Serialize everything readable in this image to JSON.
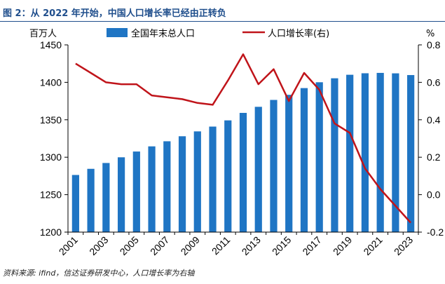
{
  "header": {
    "title": "图 2：从 2022 年开始，中国人口增长率已经由正转负"
  },
  "footer": {
    "source": "资料来源: ifind，信达证券研发中心，人口增长率为右轴"
  },
  "colors": {
    "bar": "#1f75c4",
    "line": "#c0141a",
    "title": "#1f4e8c"
  },
  "chart_data": {
    "type": "bar",
    "x": [
      2001,
      2002,
      2003,
      2004,
      2005,
      2006,
      2007,
      2008,
      2009,
      2010,
      2011,
      2012,
      2013,
      2014,
      2015,
      2016,
      2017,
      2018,
      2019,
      2020,
      2021,
      2022,
      2023
    ],
    "x_tick_labels": [
      "2001",
      "2003",
      "2005",
      "2007",
      "2009",
      "2011",
      "2013",
      "2015",
      "2017",
      "2019",
      "2021",
      "2023"
    ],
    "left_unit": "百万人",
    "right_unit": "%",
    "ylim_left": [
      1200,
      1450
    ],
    "ylim_right": [
      -0.2,
      0.8
    ],
    "left_ticks": [
      "1200",
      "1250",
      "1300",
      "1350",
      "1400",
      "1450"
    ],
    "right_ticks": [
      "-0.2",
      "0.0",
      "0.2",
      "0.4",
      "0.6",
      "0.8"
    ],
    "legend_position": "top",
    "series": [
      {
        "name": "全国年末总人口",
        "type": "bar",
        "axis": "left",
        "values": [
          1276.3,
          1284.5,
          1292.3,
          1299.9,
          1307.6,
          1314.5,
          1321.3,
          1328.0,
          1334.5,
          1340.9,
          1349.2,
          1359.2,
          1367.3,
          1376.5,
          1383.3,
          1392.3,
          1400.1,
          1405.4,
          1410.1,
          1412.1,
          1412.6,
          1412.0,
          1409.7
        ]
      },
      {
        "name": "人口增长率(右)",
        "type": "line",
        "axis": "right",
        "values": [
          0.7,
          0.65,
          0.6,
          0.59,
          0.59,
          0.53,
          0.52,
          0.51,
          0.49,
          0.48,
          0.61,
          0.75,
          0.59,
          0.67,
          0.5,
          0.65,
          0.56,
          0.38,
          0.33,
          0.14,
          0.03,
          -0.06,
          -0.15
        ]
      }
    ]
  }
}
